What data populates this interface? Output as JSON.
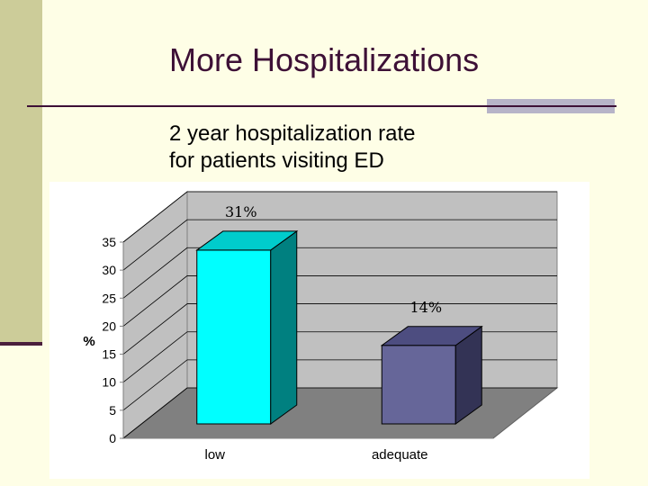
{
  "slide": {
    "title": "More Hospitalizations",
    "subtitle_line1": "2 year hospitalization rate",
    "subtitle_line2": "for patients visiting ED"
  },
  "chart_data": {
    "type": "bar",
    "title": "",
    "xlabel": "",
    "ylabel": "%",
    "ylim": [
      0,
      35
    ],
    "yticks": [
      0,
      5,
      10,
      15,
      20,
      25,
      30,
      35
    ],
    "categories": [
      "low",
      "adequate"
    ],
    "values": [
      31,
      14
    ],
    "data_labels": [
      "31%",
      "14%"
    ],
    "bar_colors": [
      {
        "front": "#00ffff",
        "side": "#008080",
        "top": "#00cccc"
      },
      {
        "front": "#666699",
        "side": "#333355",
        "top": "#4d4d80"
      }
    ],
    "wall_color": "#c0c0c0",
    "floor_color": "#808080",
    "grid": true,
    "style": "3d"
  }
}
